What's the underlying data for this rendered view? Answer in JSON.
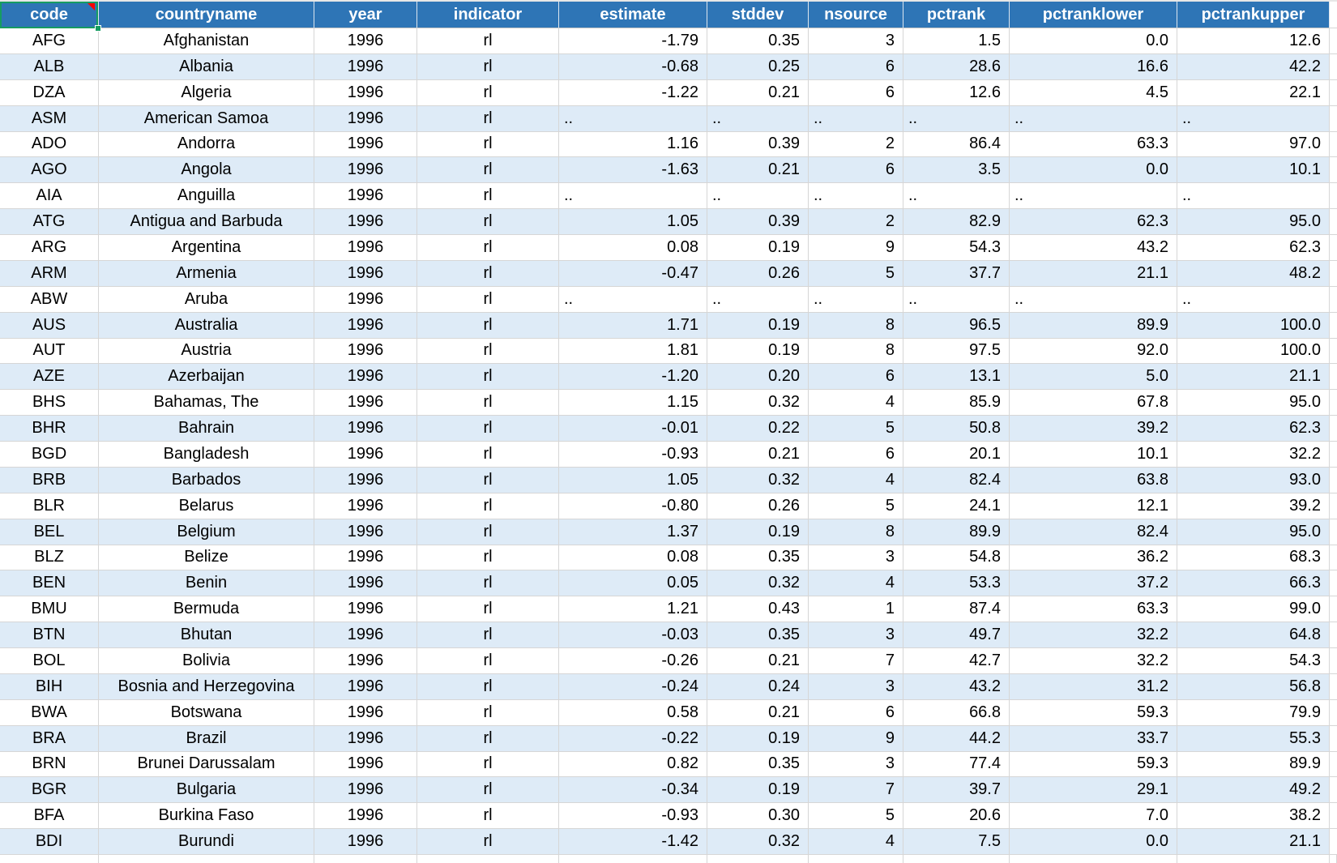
{
  "table": {
    "missing_marker": "..",
    "selected_column": "code",
    "colors": {
      "header_background": "#2E75B6",
      "header_text": "#ffffff",
      "band_row": "#DEEBF7",
      "plain_row": "#ffffff",
      "gridline": "#d6d6d6",
      "selection_border": "#169c62",
      "comment_indicator": "#ff0000",
      "cell_text": "#000000"
    },
    "columns": [
      {
        "key": "code",
        "label": "code",
        "selected": true
      },
      {
        "key": "countryname",
        "label": "countryname",
        "selected": false
      },
      {
        "key": "year",
        "label": "year",
        "selected": false
      },
      {
        "key": "indicator",
        "label": "indicator",
        "selected": false
      },
      {
        "key": "estimate",
        "label": "estimate",
        "selected": false
      },
      {
        "key": "stddev",
        "label": "stddev",
        "selected": false
      },
      {
        "key": "nsource",
        "label": "nsource",
        "selected": false
      },
      {
        "key": "pctrank",
        "label": "pctrank",
        "selected": false
      },
      {
        "key": "pctranklower",
        "label": "pctranklower",
        "selected": false
      },
      {
        "key": "pctrankupper",
        "label": "pctrankupper",
        "selected": false
      }
    ],
    "rows": [
      [
        "AFG",
        "Afghanistan",
        "1996",
        "rl",
        "-1.79",
        "0.35",
        "3",
        "1.5",
        "0.0",
        "12.6"
      ],
      [
        "ALB",
        "Albania",
        "1996",
        "rl",
        "-0.68",
        "0.25",
        "6",
        "28.6",
        "16.6",
        "42.2"
      ],
      [
        "DZA",
        "Algeria",
        "1996",
        "rl",
        "-1.22",
        "0.21",
        "6",
        "12.6",
        "4.5",
        "22.1"
      ],
      [
        "ASM",
        "American Samoa",
        "1996",
        "rl",
        "..",
        "..",
        "..",
        "..",
        "..",
        ".."
      ],
      [
        "ADO",
        "Andorra",
        "1996",
        "rl",
        "1.16",
        "0.39",
        "2",
        "86.4",
        "63.3",
        "97.0"
      ],
      [
        "AGO",
        "Angola",
        "1996",
        "rl",
        "-1.63",
        "0.21",
        "6",
        "3.5",
        "0.0",
        "10.1"
      ],
      [
        "AIA",
        "Anguilla",
        "1996",
        "rl",
        "..",
        "..",
        "..",
        "..",
        "..",
        ".."
      ],
      [
        "ATG",
        "Antigua and Barbuda",
        "1996",
        "rl",
        "1.05",
        "0.39",
        "2",
        "82.9",
        "62.3",
        "95.0"
      ],
      [
        "ARG",
        "Argentina",
        "1996",
        "rl",
        "0.08",
        "0.19",
        "9",
        "54.3",
        "43.2",
        "62.3"
      ],
      [
        "ARM",
        "Armenia",
        "1996",
        "rl",
        "-0.47",
        "0.26",
        "5",
        "37.7",
        "21.1",
        "48.2"
      ],
      [
        "ABW",
        "Aruba",
        "1996",
        "rl",
        "..",
        "..",
        "..",
        "..",
        "..",
        ".."
      ],
      [
        "AUS",
        "Australia",
        "1996",
        "rl",
        "1.71",
        "0.19",
        "8",
        "96.5",
        "89.9",
        "100.0"
      ],
      [
        "AUT",
        "Austria",
        "1996",
        "rl",
        "1.81",
        "0.19",
        "8",
        "97.5",
        "92.0",
        "100.0"
      ],
      [
        "AZE",
        "Azerbaijan",
        "1996",
        "rl",
        "-1.20",
        "0.20",
        "6",
        "13.1",
        "5.0",
        "21.1"
      ],
      [
        "BHS",
        "Bahamas, The",
        "1996",
        "rl",
        "1.15",
        "0.32",
        "4",
        "85.9",
        "67.8",
        "95.0"
      ],
      [
        "BHR",
        "Bahrain",
        "1996",
        "rl",
        "-0.01",
        "0.22",
        "5",
        "50.8",
        "39.2",
        "62.3"
      ],
      [
        "BGD",
        "Bangladesh",
        "1996",
        "rl",
        "-0.93",
        "0.21",
        "6",
        "20.1",
        "10.1",
        "32.2"
      ],
      [
        "BRB",
        "Barbados",
        "1996",
        "rl",
        "1.05",
        "0.32",
        "4",
        "82.4",
        "63.8",
        "93.0"
      ],
      [
        "BLR",
        "Belarus",
        "1996",
        "rl",
        "-0.80",
        "0.26",
        "5",
        "24.1",
        "12.1",
        "39.2"
      ],
      [
        "BEL",
        "Belgium",
        "1996",
        "rl",
        "1.37",
        "0.19",
        "8",
        "89.9",
        "82.4",
        "95.0"
      ],
      [
        "BLZ",
        "Belize",
        "1996",
        "rl",
        "0.08",
        "0.35",
        "3",
        "54.8",
        "36.2",
        "68.3"
      ],
      [
        "BEN",
        "Benin",
        "1996",
        "rl",
        "0.05",
        "0.32",
        "4",
        "53.3",
        "37.2",
        "66.3"
      ],
      [
        "BMU",
        "Bermuda",
        "1996",
        "rl",
        "1.21",
        "0.43",
        "1",
        "87.4",
        "63.3",
        "99.0"
      ],
      [
        "BTN",
        "Bhutan",
        "1996",
        "rl",
        "-0.03",
        "0.35",
        "3",
        "49.7",
        "32.2",
        "64.8"
      ],
      [
        "BOL",
        "Bolivia",
        "1996",
        "rl",
        "-0.26",
        "0.21",
        "7",
        "42.7",
        "32.2",
        "54.3"
      ],
      [
        "BIH",
        "Bosnia and Herzegovina",
        "1996",
        "rl",
        "-0.24",
        "0.24",
        "3",
        "43.2",
        "31.2",
        "56.8"
      ],
      [
        "BWA",
        "Botswana",
        "1996",
        "rl",
        "0.58",
        "0.21",
        "6",
        "66.8",
        "59.3",
        "79.9"
      ],
      [
        "BRA",
        "Brazil",
        "1996",
        "rl",
        "-0.22",
        "0.19",
        "9",
        "44.2",
        "33.7",
        "55.3"
      ],
      [
        "BRN",
        "Brunei Darussalam",
        "1996",
        "rl",
        "0.82",
        "0.35",
        "3",
        "77.4",
        "59.3",
        "89.9"
      ],
      [
        "BGR",
        "Bulgaria",
        "1996",
        "rl",
        "-0.34",
        "0.19",
        "7",
        "39.7",
        "29.1",
        "49.2"
      ],
      [
        "BFA",
        "Burkina Faso",
        "1996",
        "rl",
        "-0.93",
        "0.30",
        "5",
        "20.6",
        "7.0",
        "38.2"
      ],
      [
        "BDI",
        "Burundi",
        "1996",
        "rl",
        "-1.42",
        "0.32",
        "4",
        "7.5",
        "0.0",
        "21.1"
      ]
    ]
  }
}
